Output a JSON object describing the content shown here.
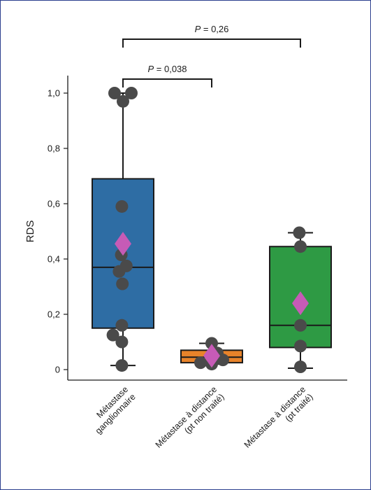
{
  "chart_data": {
    "type": "box",
    "ylabel": "RDS",
    "ylim": [
      -0.03,
      1.05
    ],
    "yticks": [
      {
        "value": 0,
        "label": "0"
      },
      {
        "value": 0.2,
        "label": "0,2"
      },
      {
        "value": 0.4,
        "label": "0,4"
      },
      {
        "value": 0.6,
        "label": "0,6"
      },
      {
        "value": 0.8,
        "label": "0,8"
      },
      {
        "value": 1.0,
        "label": "1,0"
      }
    ],
    "groups": [
      {
        "label_lines": [
          "Métastase",
          "ganglionnaire"
        ],
        "color": "#2e6da4",
        "whisker_low": 0.015,
        "q1": 0.15,
        "median": 0.37,
        "q3": 0.69,
        "whisker_high": 1.0,
        "mean": 0.455,
        "points": [
          {
            "x": -0.15,
            "y": 1.0
          },
          {
            "x": 0.15,
            "y": 1.0
          },
          {
            "x": 0.0,
            "y": 0.97
          },
          {
            "x": -0.02,
            "y": 0.59
          },
          {
            "x": -0.03,
            "y": 0.415
          },
          {
            "x": 0.06,
            "y": 0.375
          },
          {
            "x": -0.07,
            "y": 0.355
          },
          {
            "x": -0.01,
            "y": 0.31
          },
          {
            "x": -0.02,
            "y": 0.16
          },
          {
            "x": -0.18,
            "y": 0.125
          },
          {
            "x": -0.02,
            "y": 0.1
          },
          {
            "x": -0.02,
            "y": 0.015
          }
        ]
      },
      {
        "label_lines": [
          "Métastase à distance",
          "(pt non traité)"
        ],
        "color": "#e8832a",
        "whisker_low": 0.02,
        "q1": 0.025,
        "median": 0.045,
        "q3": 0.07,
        "whisker_high": 0.095,
        "mean": 0.05,
        "points": [
          {
            "x": 0.0,
            "y": 0.095
          },
          {
            "x": 0.1,
            "y": 0.06
          },
          {
            "x": -0.2,
            "y": 0.025
          },
          {
            "x": 0.0,
            "y": 0.02
          },
          {
            "x": 0.2,
            "y": 0.035
          }
        ]
      },
      {
        "label_lines": [
          "Métastase à distance",
          "(pt traité)"
        ],
        "color": "#2e9a44",
        "whisker_low": 0.005,
        "q1": 0.08,
        "median": 0.16,
        "q3": 0.445,
        "whisker_high": 0.495,
        "mean": 0.24,
        "points": [
          {
            "x": -0.02,
            "y": 0.495
          },
          {
            "x": 0.0,
            "y": 0.445
          },
          {
            "x": 0.0,
            "y": 0.16
          },
          {
            "x": 0.0,
            "y": 0.085
          },
          {
            "x": 0.0,
            "y": 0.01
          }
        ]
      }
    ],
    "comparisons": [
      {
        "from": 0,
        "to": 1,
        "label_p": "P",
        "label_value": " = 0,038"
      },
      {
        "from": 0,
        "to": 2,
        "label_p": "P",
        "label_value": " = 0,26"
      }
    ],
    "colors": {
      "point": "#4a4a4a",
      "mean_marker": "#c65bb6",
      "frame": "#2b3f8e"
    }
  }
}
